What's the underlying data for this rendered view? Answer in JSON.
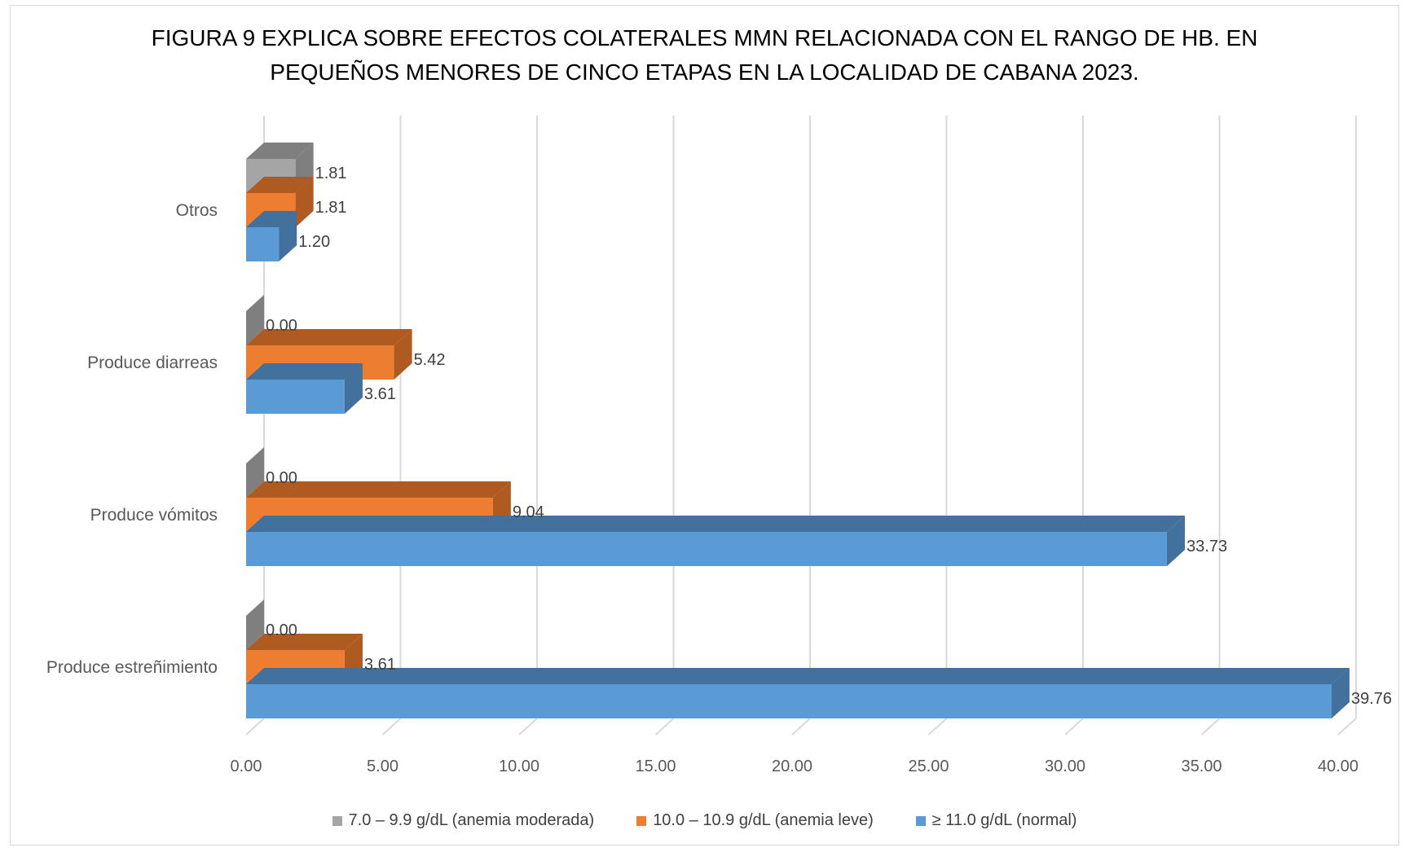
{
  "chart_data": {
    "type": "bar",
    "orientation": "horizontal",
    "style": "3d-clustered",
    "title_lines": [
      "FIGURA 9 EXPLICA SOBRE EFECTOS COLATERALES MMN RELACIONADA CON EL RANGO DE HB. EN",
      "PEQUEÑOS MENORES DE CINCO ETAPAS EN LA LOCALIDAD DE CABANA 2023."
    ],
    "categories": [
      "Produce estreñimiento",
      "Produce vómitos",
      "Produce diarreas",
      "Otros"
    ],
    "series": [
      {
        "name": "7.0 – 9.9 g/dL (anemia moderada)",
        "color": "#a5a5a5",
        "side_color": "#7f7f7f",
        "values": [
          0.0,
          0.0,
          0.0,
          1.81
        ]
      },
      {
        "name": "10.0 – 10.9 g/dL (anemia leve)",
        "color": "#ed7d31",
        "side_color": "#ae5a21",
        "values": [
          3.61,
          9.04,
          5.42,
          1.81
        ]
      },
      {
        "name": "≥ 11.0 g/dL (normal)",
        "color": "#5b9bd5",
        "side_color": "#41719c",
        "values": [
          39.76,
          33.73,
          3.61,
          1.2
        ]
      }
    ],
    "data_labels": [
      [
        "0.00",
        "0.00",
        "0.00",
        "1.81"
      ],
      [
        "3.61",
        "9.04",
        "5.42",
        "1.81"
      ],
      [
        "39.76",
        "33.73",
        "3.61",
        "1.20"
      ]
    ],
    "xlim": [
      0,
      40
    ],
    "x_ticks": [
      "0.00",
      "5.00",
      "10.00",
      "15.00",
      "20.00",
      "25.00",
      "30.00",
      "35.00",
      "40.00"
    ],
    "grid": true,
    "legend_position": "bottom"
  }
}
